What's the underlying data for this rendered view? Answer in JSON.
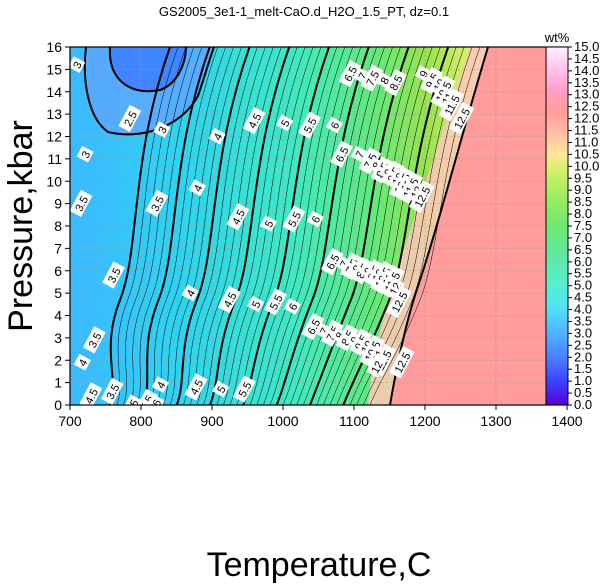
{
  "chart_data": {
    "type": "heatmap",
    "title": "GS2005_3e1-1_melt-CaO.d_H2O_1.5_PT, dz=0.1",
    "xlabel": "Temperature,C",
    "ylabel": "Pressure,kbar",
    "xlim": [
      700,
      1400
    ],
    "ylim": [
      0,
      16
    ],
    "x_ticks": [
      "700",
      "800",
      "900",
      "1000",
      "1100",
      "1200",
      "1300",
      "1400"
    ],
    "y_ticks": [
      "0",
      "1",
      "2",
      "3",
      "4",
      "5",
      "6",
      "7",
      "8",
      "9",
      "10",
      "11",
      "12",
      "13",
      "14",
      "15",
      "16"
    ],
    "grid": true,
    "colorbar": {
      "unit": "wt%",
      "min": 0.0,
      "max": 15.0,
      "ticks": [
        "0.0",
        "0.5",
        "1.0",
        "1.5",
        "2.0",
        "2.5",
        "3.0",
        "3.5",
        "4.0",
        "4.5",
        "5.0",
        "5.5",
        "6.0",
        "6.5",
        "7.0",
        "7.5",
        "8.0",
        "8.5",
        "9.0",
        "9.5",
        "10.0",
        "10.5",
        "11.0",
        "11.5",
        "12.0",
        "12.5",
        "13.0",
        "13.5",
        "14.0",
        "14.5",
        "15.0"
      ]
    },
    "contour_labels": [
      {
        "text": "3",
        "x": 710,
        "y": 15.2
      },
      {
        "text": "2.5",
        "x": 785,
        "y": 12.8
      },
      {
        "text": "3",
        "x": 830,
        "y": 12.3
      },
      {
        "text": "3",
        "x": 722,
        "y": 11.2
      },
      {
        "text": "3.5",
        "x": 716,
        "y": 9.0
      },
      {
        "text": "3.5",
        "x": 823,
        "y": 9.0
      },
      {
        "text": "4",
        "x": 880,
        "y": 9.7
      },
      {
        "text": "4.5",
        "x": 937,
        "y": 8.4
      },
      {
        "text": "5",
        "x": 980,
        "y": 8.1
      },
      {
        "text": "5.5",
        "x": 1016,
        "y": 8.3
      },
      {
        "text": "6",
        "x": 1046,
        "y": 8.3
      },
      {
        "text": "4",
        "x": 908,
        "y": 12.0
      },
      {
        "text": "4.5",
        "x": 960,
        "y": 12.7
      },
      {
        "text": "5",
        "x": 1003,
        "y": 12.6
      },
      {
        "text": "5.5",
        "x": 1038,
        "y": 12.5
      },
      {
        "text": "6",
        "x": 1073,
        "y": 12.5
      },
      {
        "text": "6.5",
        "x": 1095,
        "y": 14.8
      },
      {
        "text": "7",
        "x": 1112,
        "y": 14.7
      },
      {
        "text": "7.5",
        "x": 1126,
        "y": 14.6
      },
      {
        "text": "8",
        "x": 1143,
        "y": 14.5
      },
      {
        "text": "8.5",
        "x": 1159,
        "y": 14.4
      },
      {
        "text": "9",
        "x": 1198,
        "y": 14.8
      },
      {
        "text": "9.5",
        "x": 1210,
        "y": 14.5
      },
      {
        "text": "10",
        "x": 1220,
        "y": 14.3
      },
      {
        "text": "10.5",
        "x": 1226,
        "y": 14.0
      },
      {
        "text": "11",
        "x": 1232,
        "y": 13.7
      },
      {
        "text": "11.5",
        "x": 1238,
        "y": 13.4
      },
      {
        "text": "12.5",
        "x": 1252,
        "y": 12.8
      },
      {
        "text": "6.5",
        "x": 1083,
        "y": 11.2
      },
      {
        "text": "7",
        "x": 1108,
        "y": 11.2
      },
      {
        "text": "7.5",
        "x": 1123,
        "y": 10.9
      },
      {
        "text": "8",
        "x": 1132,
        "y": 10.7
      },
      {
        "text": "8.5",
        "x": 1140,
        "y": 10.5
      },
      {
        "text": "9",
        "x": 1148,
        "y": 10.4
      },
      {
        "text": "9.5",
        "x": 1156,
        "y": 10.3
      },
      {
        "text": "10",
        "x": 1162,
        "y": 10.1
      },
      {
        "text": "10.5",
        "x": 1168,
        "y": 9.9
      },
      {
        "text": "11",
        "x": 1174,
        "y": 9.8
      },
      {
        "text": "11.5",
        "x": 1180,
        "y": 9.7
      },
      {
        "text": "12",
        "x": 1188,
        "y": 9.5
      },
      {
        "text": "12.5",
        "x": 1196,
        "y": 9.3
      },
      {
        "text": "3.5",
        "x": 762,
        "y": 5.8
      },
      {
        "text": "4",
        "x": 870,
        "y": 5.0
      },
      {
        "text": "4.5",
        "x": 925,
        "y": 4.7
      },
      {
        "text": "5",
        "x": 962,
        "y": 4.5
      },
      {
        "text": "5.5",
        "x": 990,
        "y": 4.6
      },
      {
        "text": "6",
        "x": 1014,
        "y": 4.4
      },
      {
        "text": "6.5",
        "x": 1070,
        "y": 6.4
      },
      {
        "text": "7",
        "x": 1086,
        "y": 6.3
      },
      {
        "text": "7.5",
        "x": 1097,
        "y": 6.2
      },
      {
        "text": "8",
        "x": 1104,
        "y": 6.1
      },
      {
        "text": "8.5",
        "x": 1112,
        "y": 6.0
      },
      {
        "text": "9",
        "x": 1120,
        "y": 6.0
      },
      {
        "text": "9.5",
        "x": 1128,
        "y": 5.9
      },
      {
        "text": "10",
        "x": 1134,
        "y": 5.8
      },
      {
        "text": "10.5",
        "x": 1141,
        "y": 5.7
      },
      {
        "text": "11",
        "x": 1148,
        "y": 5.6
      },
      {
        "text": "11.5",
        "x": 1154,
        "y": 5.5
      },
      {
        "text": "12",
        "x": 1158,
        "y": 5.2
      },
      {
        "text": "12.5",
        "x": 1164,
        "y": 4.6
      },
      {
        "text": "3.5",
        "x": 735,
        "y": 2.9
      },
      {
        "text": "4",
        "x": 718,
        "y": 1.9
      },
      {
        "text": "3.5",
        "x": 760,
        "y": 0.6
      },
      {
        "text": "4",
        "x": 828,
        "y": 0.9
      },
      {
        "text": "4.5",
        "x": 878,
        "y": 0.8
      },
      {
        "text": "5",
        "x": 913,
        "y": 0.7
      },
      {
        "text": "5.5",
        "x": 946,
        "y": 0.7
      },
      {
        "text": "6.5",
        "x": 1043,
        "y": 3.5
      },
      {
        "text": "7",
        "x": 1058,
        "y": 3.3
      },
      {
        "text": "7.5",
        "x": 1070,
        "y": 3.2
      },
      {
        "text": "8",
        "x": 1080,
        "y": 3.1
      },
      {
        "text": "8.5",
        "x": 1091,
        "y": 3.0
      },
      {
        "text": "9",
        "x": 1101,
        "y": 2.9
      },
      {
        "text": "9.5",
        "x": 1110,
        "y": 2.8
      },
      {
        "text": "10",
        "x": 1118,
        "y": 2.6
      },
      {
        "text": "10.5",
        "x": 1126,
        "y": 2.4
      },
      {
        "text": "11",
        "x": 1134,
        "y": 2.2
      },
      {
        "text": "11.5",
        "x": 1142,
        "y": 2.0
      },
      {
        "text": "12",
        "x": 1132,
        "y": 1.7
      },
      {
        "text": "12.5",
        "x": 1168,
        "y": 1.9
      },
      {
        "text": "5",
        "x": 790,
        "y": 0.1
      },
      {
        "text": "5.5",
        "x": 808,
        "y": 0.1
      },
      {
        "text": "6",
        "x": 822,
        "y": 0.1
      },
      {
        "text": "4.5",
        "x": 730,
        "y": 0.4
      }
    ]
  }
}
